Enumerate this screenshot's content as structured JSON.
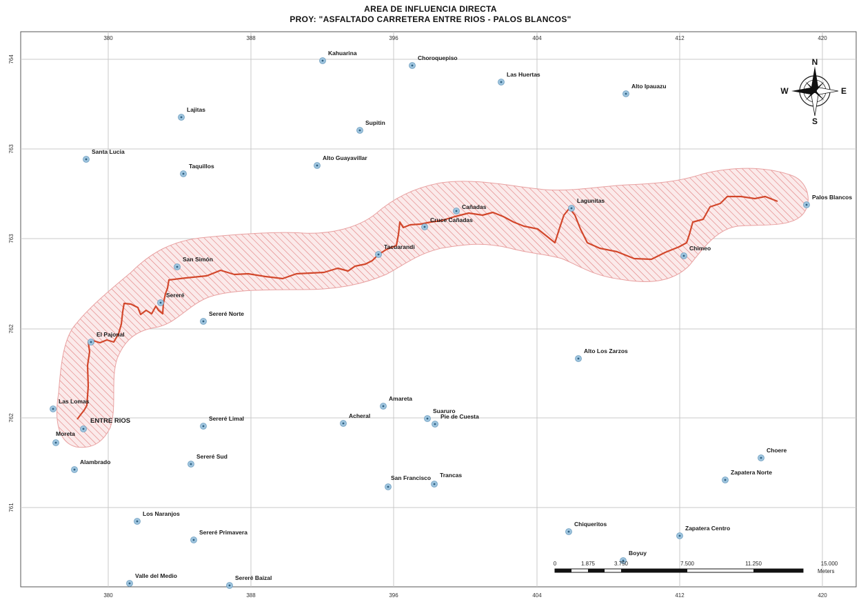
{
  "title": {
    "line1": "AREA DE INFLUENCIA DIRECTA",
    "line2": "PROY: \"ASFALTADO CARRETERA ENTRE RIOS - PALOS BLANCOS\""
  },
  "grid": {
    "x_labels": [
      "380",
      "388",
      "396",
      "404",
      "412",
      "420"
    ],
    "y_labels": [
      "764",
      "763",
      "763",
      "762",
      "762",
      "761"
    ]
  },
  "compass": {
    "n": "N",
    "s": "S",
    "e": "E",
    "w": "W"
  },
  "scale_bar": {
    "labels": [
      "0",
      "1.875",
      "3.750",
      "7.500",
      "11.250",
      "15.000"
    ],
    "unit": "Meters"
  },
  "places": [
    {
      "name": "Kahuarina"
    },
    {
      "name": "Choroquepiso"
    },
    {
      "name": "Las Huertas"
    },
    {
      "name": "Alto Ipauazu"
    },
    {
      "name": "Lajitas"
    },
    {
      "name": "Supitin"
    },
    {
      "name": "Santa Lucia"
    },
    {
      "name": "Alto Guayavillar"
    },
    {
      "name": "Taquillos"
    },
    {
      "name": "Cañadas"
    },
    {
      "name": "Lagunitas"
    },
    {
      "name": "Palos Blancos"
    },
    {
      "name": "Cruce Cañadas"
    },
    {
      "name": "Tacuarandi"
    },
    {
      "name": "Chimeo"
    },
    {
      "name": "San Simón"
    },
    {
      "name": "Sereré"
    },
    {
      "name": "Sereré Norte"
    },
    {
      "name": "El Pajonal"
    },
    {
      "name": "Alto Los Zarzos"
    },
    {
      "name": "Amareta"
    },
    {
      "name": "Las Lomas"
    },
    {
      "name": "Suaruro"
    },
    {
      "name": "Acheral"
    },
    {
      "name": "Sereré Limal"
    },
    {
      "name": "Pie de Cuesta"
    },
    {
      "name": "ENTRE RIOS"
    },
    {
      "name": "Moreta"
    },
    {
      "name": "Choere"
    },
    {
      "name": "Sereré Sud"
    },
    {
      "name": "Alambrado"
    },
    {
      "name": "Trancas"
    },
    {
      "name": "Zapatera Norte"
    },
    {
      "name": "San Francisco"
    },
    {
      "name": "Los Naranjos"
    },
    {
      "name": "Chiqueritos"
    },
    {
      "name": "Sereré Primavera"
    },
    {
      "name": "Zapatera Centro"
    },
    {
      "name": "Boyuy"
    },
    {
      "name": "Valle del Medio"
    },
    {
      "name": "Sereré Baizal"
    }
  ],
  "colors": {
    "road": "#d2472b",
    "buffer_hatch": "#e07a7a",
    "buffer_fill": "#fbeaea",
    "marker": "#9ec4de",
    "grid": "#c8c8c8"
  }
}
